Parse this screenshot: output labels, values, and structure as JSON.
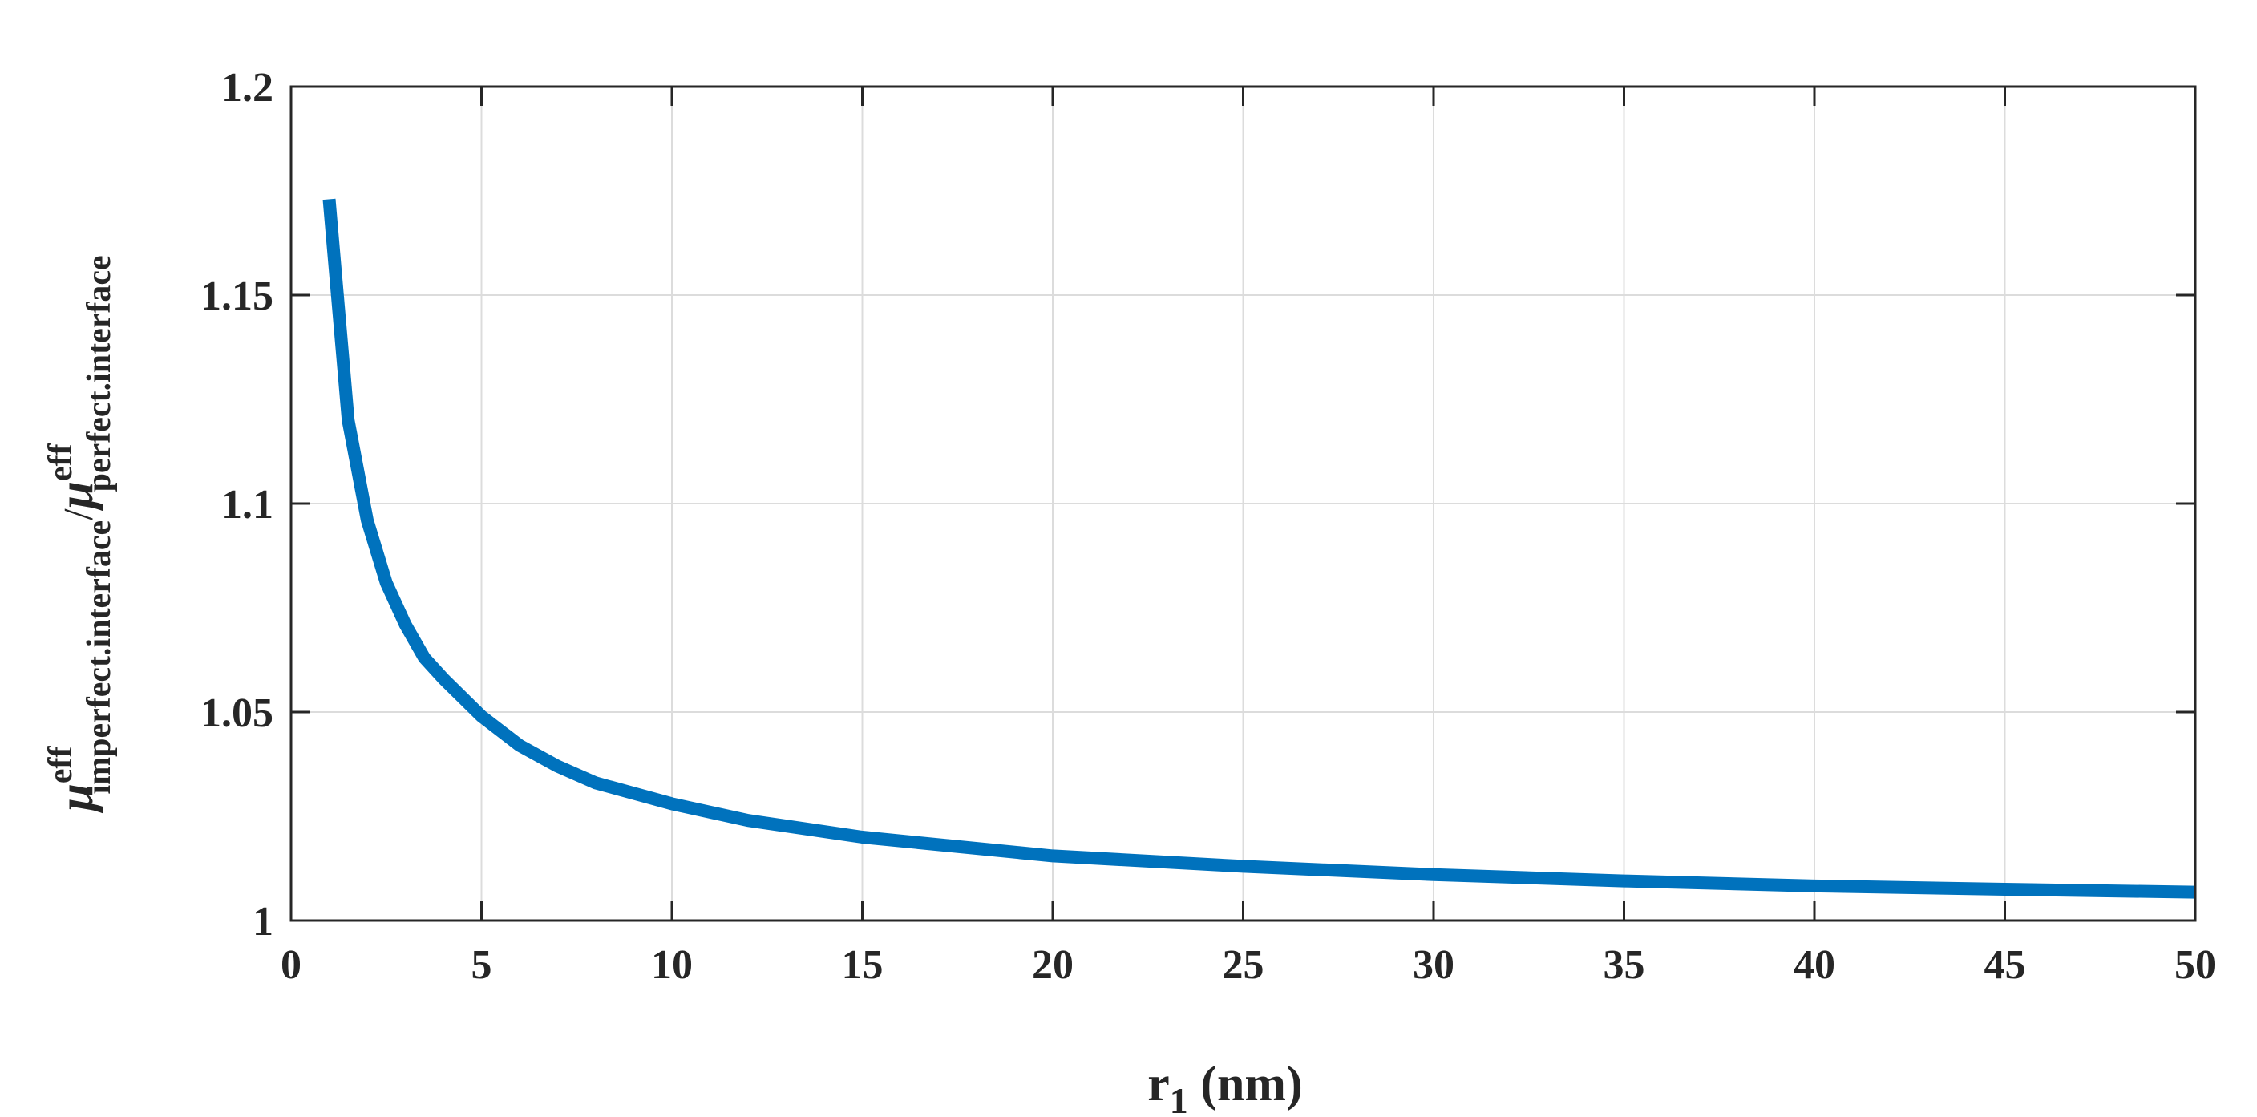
{
  "chart_data": {
    "type": "line",
    "title": "",
    "xlabel": {
      "main": "r",
      "sub": "1",
      "unit": " (nm)"
    },
    "ylabel": {
      "numerator": {
        "symbol": "μ",
        "sup": "eff",
        "sub": "imperfect.interface"
      },
      "separator": "/",
      "denominator": {
        "symbol": "μ",
        "sup": "eff",
        "sub": "perfect.interface"
      }
    },
    "xlim": [
      0,
      50
    ],
    "ylim": [
      1,
      1.2
    ],
    "xticks": [
      0,
      5,
      10,
      15,
      20,
      25,
      30,
      35,
      40,
      45,
      50
    ],
    "xtick_labels": [
      "0",
      "5",
      "10",
      "15",
      "20",
      "25",
      "30",
      "35",
      "40",
      "45",
      "50"
    ],
    "yticks": [
      1,
      1.05,
      1.1,
      1.15,
      1.2
    ],
    "ytick_labels": [
      "1",
      "1.05",
      "1.1",
      "1.15",
      "1.2"
    ],
    "grid": true,
    "series": [
      {
        "color": "#0072BD",
        "x": [
          1,
          1.5,
          2,
          2.5,
          3,
          3.5,
          4,
          5,
          6,
          7,
          8,
          10,
          12,
          15,
          20,
          25,
          30,
          35,
          40,
          45,
          50
        ],
        "y": [
          1.173,
          1.12,
          1.096,
          1.081,
          1.071,
          1.063,
          1.058,
          1.049,
          1.042,
          1.037,
          1.033,
          1.028,
          1.024,
          1.02,
          1.0155,
          1.013,
          1.011,
          1.0095,
          1.0083,
          1.0075,
          1.0068
        ]
      }
    ]
  }
}
